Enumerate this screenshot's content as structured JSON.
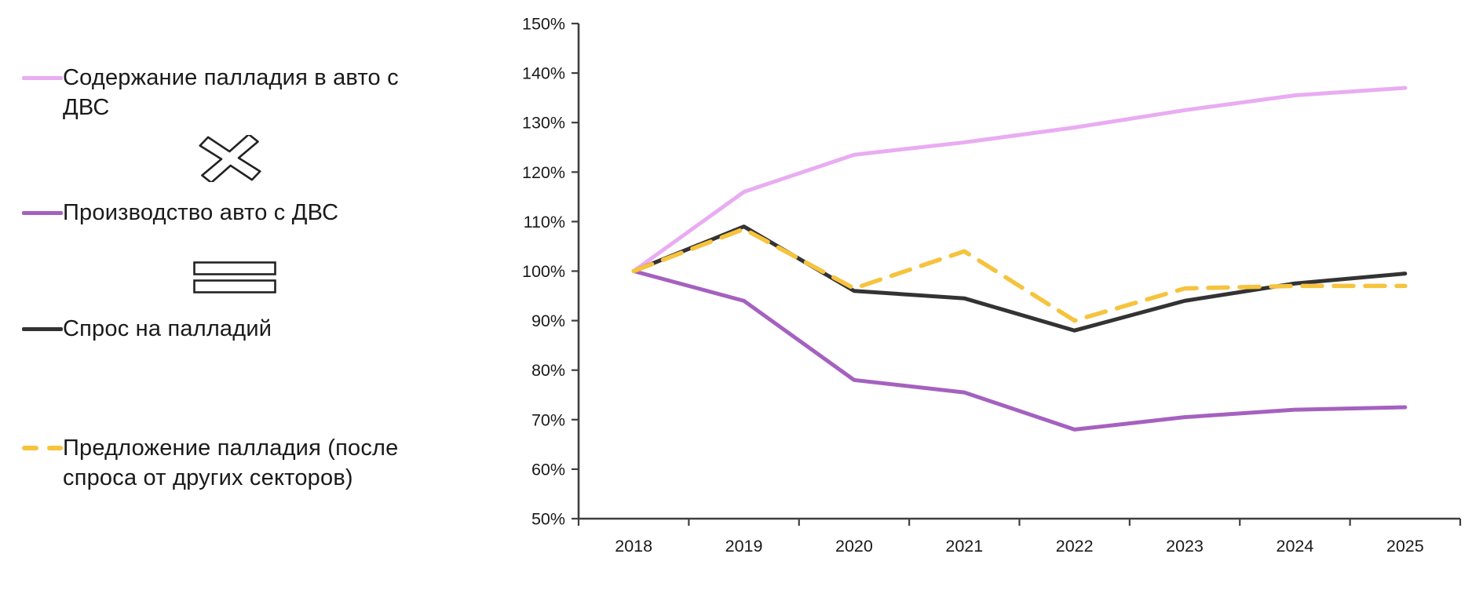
{
  "chart_data": {
    "type": "line",
    "categories": [
      "2018",
      "2019",
      "2020",
      "2021",
      "2022",
      "2023",
      "2024",
      "2025"
    ],
    "series": [
      {
        "name": "Содержание палладия в авто с ДВС",
        "color": "#e9acf2",
        "style": "solid",
        "values": [
          100,
          116,
          123.5,
          126,
          129,
          132.5,
          135.5,
          137
        ]
      },
      {
        "name": "Производство авто с ДВС",
        "color": "#a561bf",
        "style": "solid",
        "values": [
          100,
          94,
          78,
          75.5,
          68,
          70.5,
          72,
          72.5
        ]
      },
      {
        "name": "Спрос на палладий",
        "color": "#333333",
        "style": "solid",
        "values": [
          100,
          109,
          96,
          94.5,
          88,
          94,
          97.5,
          99.5
        ]
      },
      {
        "name": "Предложение палладия (после спроса от других секторов)",
        "color": "#f6c33e",
        "style": "dashed",
        "values": [
          100,
          108.5,
          96.5,
          104,
          90,
          96.5,
          97,
          97
        ]
      }
    ],
    "ylim": [
      50,
      150
    ],
    "ytick_step": 10,
    "ytick_suffix": "%",
    "grid": false,
    "legend_position": "left",
    "x_labels_between_ticks": true
  },
  "legend": {
    "operator_multiply": "multiply-sign",
    "operator_equals": "equals-sign"
  },
  "colors": {
    "axis": "#3f3f3f",
    "label_text": "#1a1a1a"
  }
}
